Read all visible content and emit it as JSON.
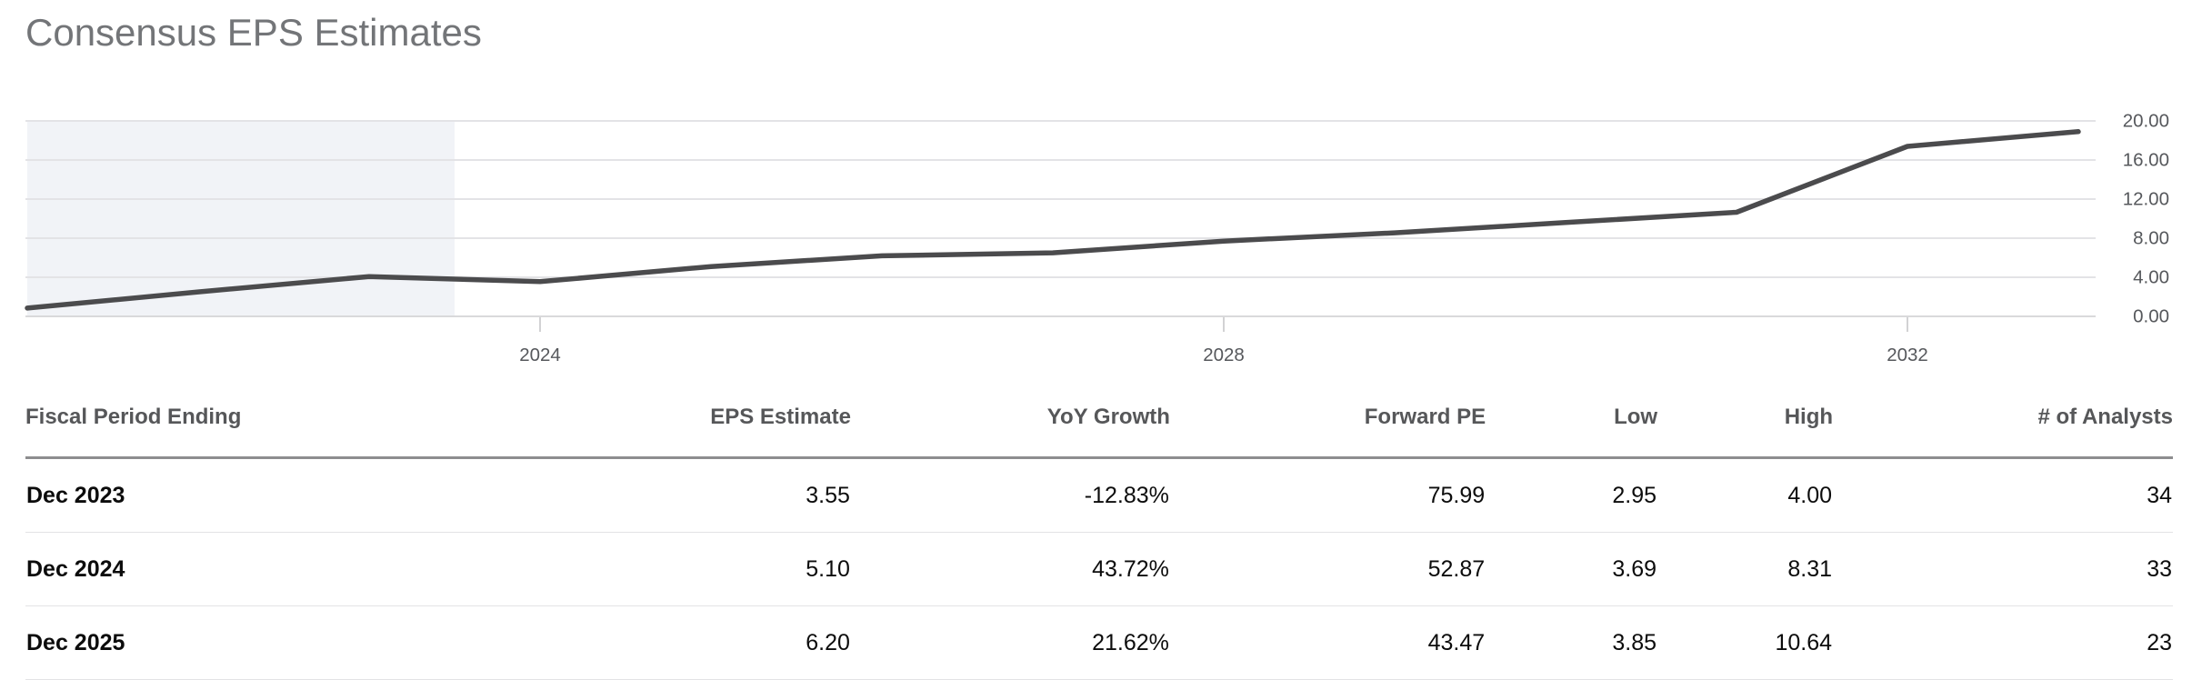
{
  "page": {
    "title": "Consensus EPS Estimates"
  },
  "colors": {
    "line": "#4b4b4d",
    "historical_shade": "#f1f3f7",
    "gridline": "#e3e3e6",
    "axis_bottom": "#d9d9db",
    "tick_mark": "#d2d2d4",
    "axis_label": "#56585c"
  },
  "chart_data": {
    "type": "line",
    "title": "Consensus EPS Estimates",
    "series": [
      {
        "name": "Consensus EPS",
        "fiscal_periods": [
          "Dec 2020",
          "Dec 2021",
          "Dec 2022",
          "Dec 2023",
          "Dec 2024",
          "Dec 2025",
          "Dec 2026",
          "Dec 2027",
          "Dec 2028",
          "Dec 2029",
          "Dec 2030",
          "Dec 2031",
          "Dec 2032"
        ],
        "values": [
          0.85,
          2.5,
          4.07,
          3.55,
          5.1,
          6.2,
          6.5,
          7.7,
          8.55,
          9.6,
          10.65,
          17.4,
          18.9
        ]
      }
    ],
    "x_axis": {
      "tick_years": [
        2024,
        2028,
        2032
      ],
      "tick_labels": [
        "2024",
        "2028",
        "2032"
      ]
    },
    "y_axis": {
      "min": 0,
      "max": 20,
      "tick_step": 4,
      "tick_labels": [
        "0.00",
        "4.00",
        "8.00",
        "12.00",
        "16.00",
        "20.00"
      ],
      "side": "right"
    },
    "historical_shade_region": {
      "from_year": 2021.0,
      "to_year": 2023.5
    },
    "grid": true,
    "legend": false
  },
  "table": {
    "columns": [
      "Fiscal Period Ending",
      "EPS Estimate",
      "YoY Growth",
      "Forward PE",
      "Low",
      "High",
      "# of Analysts"
    ],
    "rows": [
      [
        "Dec 2023",
        "3.55",
        "-12.83%",
        "75.99",
        "2.95",
        "4.00",
        "34"
      ],
      [
        "Dec 2024",
        "5.10",
        "43.72%",
        "52.87",
        "3.69",
        "8.31",
        "33"
      ],
      [
        "Dec 2025",
        "6.20",
        "21.62%",
        "43.47",
        "3.85",
        "10.64",
        "23"
      ]
    ]
  }
}
